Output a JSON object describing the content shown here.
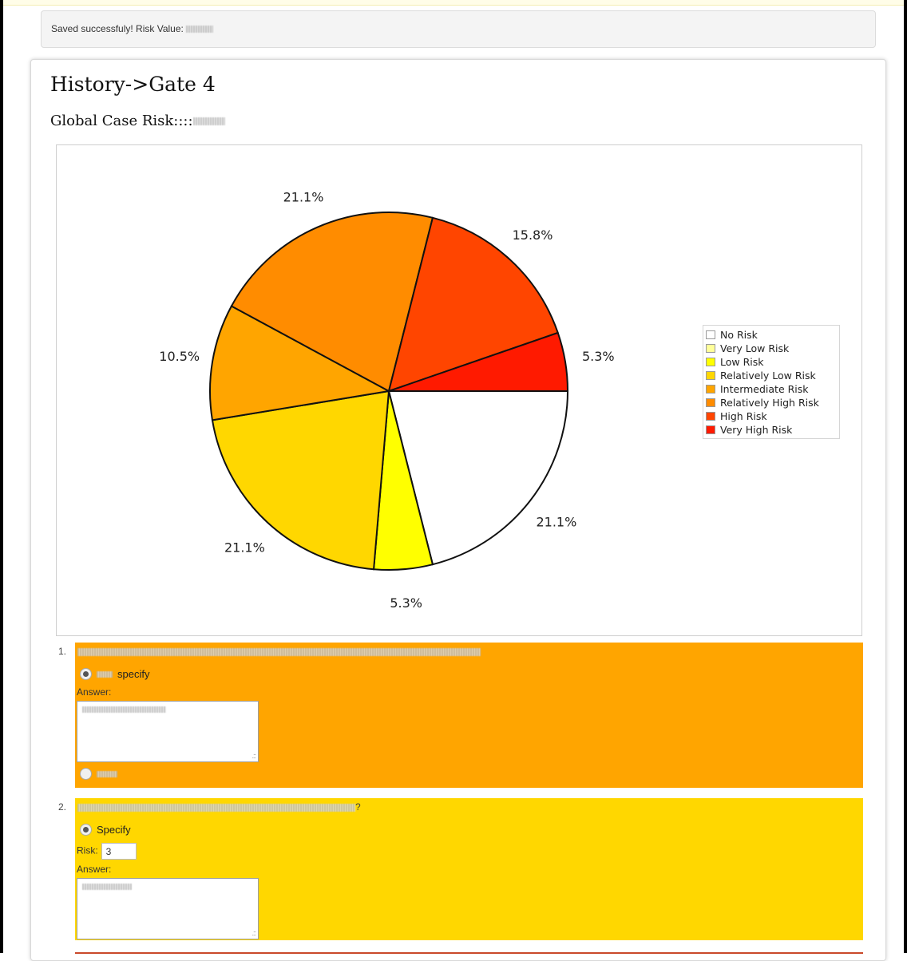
{
  "alert": {
    "text": "Saved successfuly! Risk Value:"
  },
  "panel": {
    "title": "History->Gate 4",
    "subtitle": "Global Case Risk::::"
  },
  "legend": {
    "items": [
      {
        "label": "No Risk",
        "color": "#ffffff"
      },
      {
        "label": "Very Low Risk",
        "color": "#ffff99"
      },
      {
        "label": "Low Risk",
        "color": "#ffff00"
      },
      {
        "label": "Relatively Low Risk",
        "color": "#ffd700"
      },
      {
        "label": "Intermediate Risk",
        "color": "#ffa500"
      },
      {
        "label": "Relatively High Risk",
        "color": "#ff8c00"
      },
      {
        "label": "High Risk",
        "color": "#ff4500"
      },
      {
        "label": "Very High Risk",
        "color": "#ff1a00"
      }
    ]
  },
  "chart_data": {
    "type": "pie",
    "title": "",
    "slices": [
      {
        "label": "No Risk",
        "value": 21.1,
        "text": "21.1%",
        "color": "#ffffff"
      },
      {
        "label": "Low Risk",
        "value": 5.3,
        "text": "5.3%",
        "color": "#ffff00"
      },
      {
        "label": "Relatively Low Risk",
        "value": 21.1,
        "text": "21.1%",
        "color": "#ffd700"
      },
      {
        "label": "Intermediate Risk",
        "value": 10.5,
        "text": "10.5%",
        "color": "#ffa500"
      },
      {
        "label": "Relatively High Risk",
        "value": 21.1,
        "text": "21.1%",
        "color": "#ff8c00"
      },
      {
        "label": "High Risk",
        "value": 15.8,
        "text": "15.8%",
        "color": "#ff4500"
      },
      {
        "label": "Very High Risk",
        "value": 5.3,
        "text": "5.3%",
        "color": "#ff1a00"
      }
    ],
    "legend_position": "right"
  },
  "questions": [
    {
      "number": "1.",
      "color": "#ffa500",
      "option1_label": "specify",
      "answer_label": "Answer:",
      "option2_label": ""
    },
    {
      "number": "2.",
      "color": "#ffd700",
      "text_suffix": "?",
      "option1_label": "Specify",
      "risk_label": "Risk:",
      "risk_value": "3",
      "answer_label": "Answer:"
    }
  ]
}
